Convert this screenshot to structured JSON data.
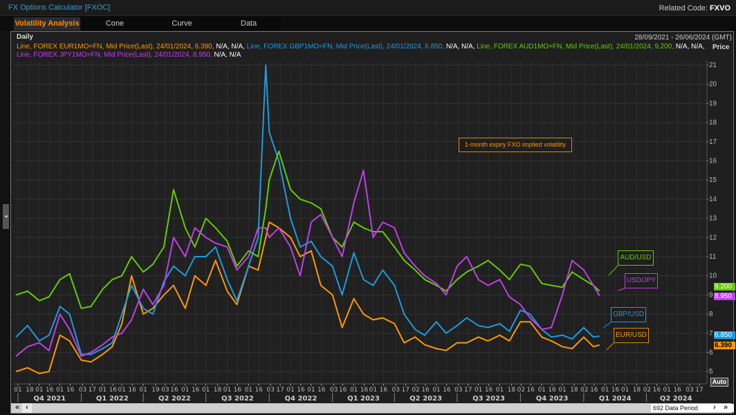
{
  "app": {
    "title": "FX Options Calculator [FXOC]",
    "related_label": "Related Code:",
    "related_code": "FXVO"
  },
  "tabs": [
    {
      "label": "Volatility Analysis",
      "active": true
    },
    {
      "label": "Cone",
      "active": false
    },
    {
      "label": "Curve",
      "active": false
    },
    {
      "label": "Data",
      "active": false
    }
  ],
  "chart_header": {
    "frequency": "Daily",
    "date_range": "28/09/2021 - 26/06/2024 (GMT)",
    "axis_title": "Price"
  },
  "legend": [
    {
      "text": "Line, FOREX EUR1MO=FN, Mid Price(Last), 24/01/2024, 6.390,",
      "suffix": " N/A, N/A,",
      "color": "#ff9900"
    },
    {
      "text": " Line, FOREX GBP1MO=FN, Mid Price(Last), 24/01/2024, 6.850,",
      "suffix": " N/A, N/A,",
      "color": "#1e9be0"
    },
    {
      "text": " Line, FOREX AUD1MO=FN, Mid Price(Last), 24/01/2024, 9.200,",
      "suffix": " N/A, N/A,",
      "color": "#66cc00"
    },
    {
      "text": "Line, FOREX JPY1MO=FN, Mid Price(Last), 24/01/2024, 8.950,",
      "suffix": " N/A, N/A",
      "color": "#c040e8"
    }
  ],
  "annotation": "1-month expiry FXO implied volatility",
  "auto_label": "Auto",
  "scrollbar": {
    "period_label": "692 Data Period",
    "first": "«",
    "prev": "‹",
    "next": "›",
    "last": "»"
  },
  "chart_data": {
    "type": "line",
    "xlim": [
      "2021-09-28",
      "2024-06-26"
    ],
    "ylim": [
      4.5,
      21.5
    ],
    "yticks": [
      5,
      6,
      7,
      8,
      9,
      10,
      11,
      12,
      13,
      14,
      15,
      16,
      17,
      18,
      19,
      20,
      21
    ],
    "grid": true,
    "xtick_dates": [
      "2021-10-01",
      "2021-10-18",
      "2021-11-01",
      "2021-11-16",
      "2021-12-01",
      "2021-12-16",
      "2022-01-03",
      "2022-01-17",
      "2022-02-01",
      "2022-02-16",
      "2022-03-01",
      "2022-03-16",
      "2022-04-01",
      "2022-04-19",
      "2022-05-03",
      "2022-05-16",
      "2022-06-01",
      "2022-06-16",
      "2022-07-01",
      "2022-07-18",
      "2022-08-01",
      "2022-08-16",
      "2022-09-01",
      "2022-09-16",
      "2022-10-03",
      "2022-10-17",
      "2022-11-01",
      "2022-11-16",
      "2022-12-01",
      "2022-12-16",
      "2023-01-03",
      "2023-01-16",
      "2023-02-01",
      "2023-02-16",
      "2023-03-01",
      "2023-03-16",
      "2023-04-03",
      "2023-04-17",
      "2023-05-02",
      "2023-05-16",
      "2023-06-01",
      "2023-06-16",
      "2023-07-03",
      "2023-07-17",
      "2023-08-01",
      "2023-08-16",
      "2023-09-01",
      "2023-09-18",
      "2023-10-02",
      "2023-10-16",
      "2023-11-01",
      "2023-11-16",
      "2023-12-01",
      "2023-12-18",
      "2024-01-02",
      "2024-01-16",
      "2024-02-01",
      "2024-02-16",
      "2024-03-01",
      "2024-03-18",
      "2024-04-02",
      "2024-04-16",
      "2024-05-01",
      "2024-05-16",
      "2024-06-03",
      "2024-06-17"
    ],
    "quarters": [
      {
        "label": "Q4 2021",
        "start": "2021-10-01",
        "end": "2022-01-01"
      },
      {
        "label": "Q1 2022",
        "start": "2022-01-01",
        "end": "2022-04-01"
      },
      {
        "label": "Q2 2022",
        "start": "2022-04-01",
        "end": "2022-07-01"
      },
      {
        "label": "Q3 2022",
        "start": "2022-07-01",
        "end": "2022-10-01"
      },
      {
        "label": "Q4 2022",
        "start": "2022-10-01",
        "end": "2023-01-01"
      },
      {
        "label": "Q1 2023",
        "start": "2023-01-01",
        "end": "2023-04-01"
      },
      {
        "label": "Q2 2023",
        "start": "2023-04-01",
        "end": "2023-07-01"
      },
      {
        "label": "Q3 2023",
        "start": "2023-07-01",
        "end": "2023-10-01"
      },
      {
        "label": "Q4 2023",
        "start": "2023-10-01",
        "end": "2024-01-01"
      },
      {
        "label": "Q1 2024",
        "start": "2024-01-01",
        "end": "2024-04-01"
      },
      {
        "label": "Q2 2024",
        "start": "2024-04-01",
        "end": "2024-06-26"
      }
    ],
    "x": [
      "2021-09-28",
      "2021-10-15",
      "2021-11-01",
      "2021-11-15",
      "2021-12-01",
      "2021-12-15",
      "2022-01-01",
      "2022-01-15",
      "2022-02-01",
      "2022-02-15",
      "2022-03-01",
      "2022-03-15",
      "2022-04-01",
      "2022-04-15",
      "2022-05-01",
      "2022-05-15",
      "2022-06-01",
      "2022-06-15",
      "2022-07-01",
      "2022-07-15",
      "2022-08-01",
      "2022-08-15",
      "2022-09-01",
      "2022-09-15",
      "2022-09-26",
      "2022-10-01",
      "2022-10-15",
      "2022-11-01",
      "2022-11-15",
      "2022-12-01",
      "2022-12-15",
      "2023-01-01",
      "2023-01-15",
      "2023-02-01",
      "2023-02-15",
      "2023-03-01",
      "2023-03-15",
      "2023-04-01",
      "2023-04-15",
      "2023-05-01",
      "2023-05-15",
      "2023-06-01",
      "2023-06-15",
      "2023-07-01",
      "2023-07-15",
      "2023-08-01",
      "2023-08-15",
      "2023-09-01",
      "2023-09-15",
      "2023-10-01",
      "2023-10-15",
      "2023-11-01",
      "2023-11-15",
      "2023-12-01",
      "2023-12-15",
      "2024-01-01",
      "2024-01-15",
      "2024-01-24"
    ],
    "series": [
      {
        "name": "EUR/USD",
        "last": "6.390",
        "color": "#ff9900",
        "values": [
          5.0,
          5.2,
          4.9,
          5.0,
          6.9,
          6.6,
          5.6,
          5.5,
          5.9,
          6.3,
          7.5,
          10.0,
          8.0,
          8.3,
          9.0,
          9.5,
          8.3,
          10.0,
          9.5,
          10.8,
          9.2,
          8.5,
          10.5,
          10.3,
          12.0,
          12.8,
          12.5,
          12.0,
          11.0,
          11.3,
          9.5,
          9.0,
          7.3,
          8.8,
          8.0,
          7.7,
          7.8,
          7.5,
          6.5,
          6.8,
          6.4,
          6.2,
          6.1,
          6.5,
          6.5,
          6.8,
          6.6,
          6.9,
          6.6,
          7.6,
          7.6,
          6.8,
          6.6,
          6.3,
          6.2,
          6.8,
          6.3,
          6.39
        ]
      },
      {
        "name": "GBP/USD",
        "last": "6.850",
        "color": "#1e9be0",
        "values": [
          6.8,
          7.4,
          6.6,
          6.9,
          8.4,
          8.0,
          5.9,
          5.9,
          6.2,
          6.5,
          8.0,
          9.5,
          8.3,
          8.0,
          9.7,
          10.5,
          10.0,
          11.0,
          11.0,
          11.5,
          9.8,
          8.7,
          10.5,
          12.0,
          21.0,
          17.5,
          16.0,
          13.0,
          11.5,
          11.8,
          11.0,
          10.5,
          9.0,
          11.2,
          9.8,
          9.5,
          10.3,
          9.5,
          8.0,
          7.2,
          6.9,
          7.6,
          7.0,
          7.4,
          7.8,
          7.4,
          7.3,
          7.5,
          7.1,
          8.2,
          8.0,
          7.2,
          6.8,
          6.9,
          6.7,
          7.3,
          6.8,
          6.85
        ]
      },
      {
        "name": "AUD/USD",
        "last": "9.200",
        "color": "#66cc00",
        "values": [
          9.0,
          9.2,
          8.7,
          8.9,
          9.8,
          10.1,
          8.3,
          8.4,
          9.3,
          9.8,
          10.0,
          11.0,
          10.2,
          10.6,
          11.5,
          14.5,
          12.5,
          11.5,
          13.0,
          12.5,
          11.8,
          10.5,
          11.3,
          11.0,
          13.5,
          15.0,
          16.5,
          14.5,
          14.0,
          13.8,
          13.5,
          12.0,
          11.5,
          12.8,
          12.5,
          12.3,
          12.3,
          11.5,
          10.8,
          10.3,
          9.8,
          9.5,
          9.2,
          9.8,
          10.2,
          10.5,
          10.8,
          10.3,
          9.8,
          10.6,
          10.5,
          9.6,
          9.5,
          9.4,
          10.2,
          9.8,
          9.5,
          9.2
        ]
      },
      {
        "name": "USD/JPY",
        "last": "8.950",
        "color": "#c040e8",
        "values": [
          5.8,
          6.3,
          6.5,
          6.1,
          8.0,
          7.2,
          5.8,
          6.0,
          6.4,
          6.8,
          7.0,
          7.7,
          9.3,
          8.5,
          9.5,
          12.0,
          11.0,
          12.5,
          12.0,
          11.7,
          11.5,
          10.3,
          11.0,
          12.5,
          12.5,
          12.0,
          12.5,
          11.5,
          10.0,
          12.8,
          13.2,
          12.0,
          11.0,
          13.8,
          15.5,
          12.0,
          12.8,
          12.5,
          11.2,
          10.5,
          10.0,
          9.6,
          9.0,
          10.5,
          11.0,
          9.8,
          9.5,
          9.8,
          8.9,
          8.5,
          7.8,
          7.2,
          7.3,
          9.0,
          10.8,
          10.3,
          9.5,
          8.95
        ]
      }
    ]
  }
}
